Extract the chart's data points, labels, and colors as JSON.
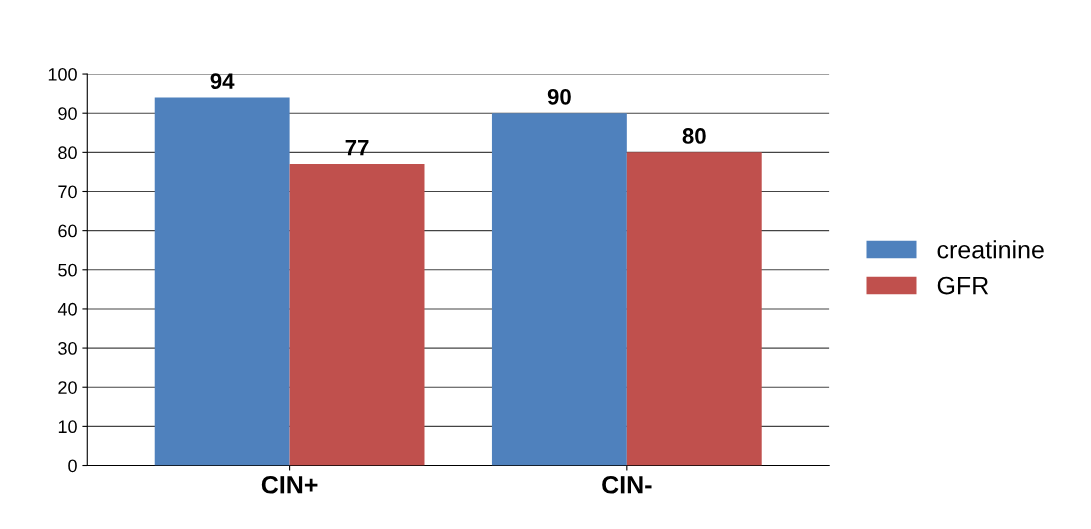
{
  "chart_data": {
    "type": "bar",
    "categories": [
      "CIN+",
      "CIN-"
    ],
    "series": [
      {
        "name": "creatinine",
        "color": "#4f81bd",
        "values": [
          94,
          90
        ]
      },
      {
        "name": "GFR",
        "color": "#c0504d",
        "values": [
          77,
          80
        ]
      }
    ],
    "ylim": [
      0,
      100
    ],
    "yticks": [
      0,
      10,
      20,
      30,
      40,
      50,
      60,
      70,
      80,
      90,
      100
    ],
    "grid": "y",
    "legend": "right",
    "data_labels": true
  }
}
